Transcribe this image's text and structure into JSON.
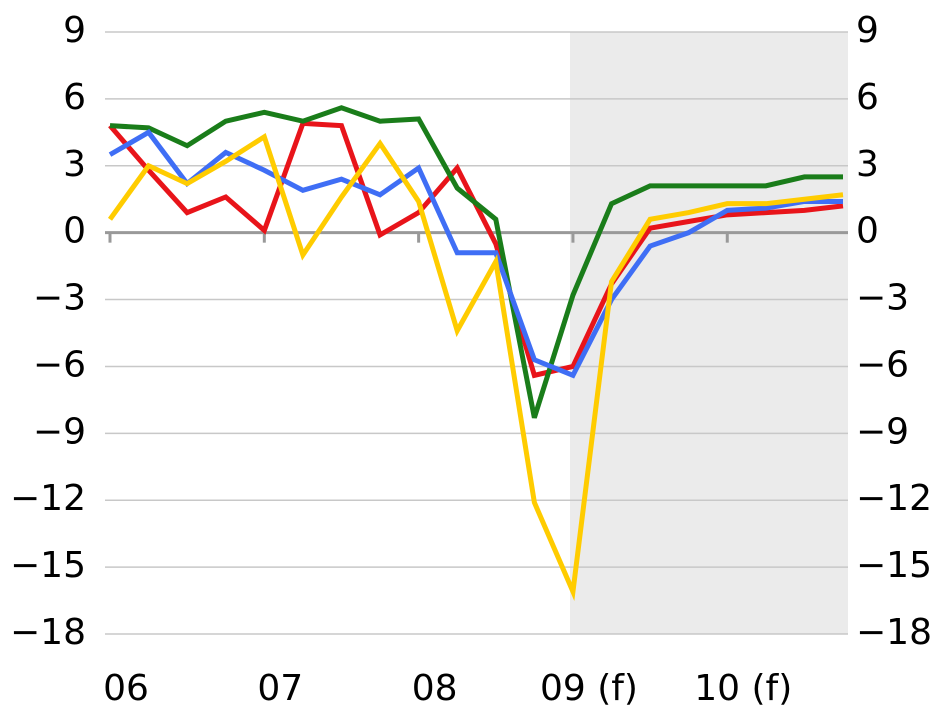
{
  "chart_data": {
    "type": "line",
    "categories": [
      "06",
      null,
      null,
      null,
      "07",
      null,
      null,
      null,
      "08",
      null,
      null,
      null,
      "09 (f)",
      null,
      null,
      null,
      "10 (f)",
      null,
      null,
      null
    ],
    "series": [
      {
        "color": "#e8141a",
        "values": [
          4.8,
          2.8,
          0.9,
          1.6,
          0.1,
          4.9,
          4.8,
          -0.1,
          0.9,
          2.9,
          -0.5,
          -6.4,
          -6.0,
          -2.3,
          0.2,
          0.5,
          0.8,
          0.9,
          1.0,
          1.2
        ]
      },
      {
        "color": "#1a7d1a",
        "values": [
          4.8,
          4.7,
          3.9,
          5.0,
          5.4,
          5.0,
          5.6,
          5.0,
          5.1,
          2.0,
          0.6,
          -8.3,
          -2.8,
          1.3,
          2.1,
          2.1,
          2.1,
          2.1,
          2.5,
          2.5
        ]
      },
      {
        "color": "#3f6ef5",
        "values": [
          3.5,
          4.5,
          2.2,
          3.6,
          2.8,
          1.9,
          2.4,
          1.7,
          2.9,
          -0.9,
          -0.9,
          -5.7,
          -6.4,
          -3.0,
          -0.6,
          0.0,
          1.0,
          1.1,
          1.4,
          1.4
        ]
      },
      {
        "color": "#ffcc00",
        "values": [
          0.6,
          3.0,
          2.2,
          3.2,
          4.3,
          -1.0,
          1.6,
          4.0,
          1.4,
          -4.4,
          -1.3,
          -12.1,
          -16.1,
          -2.2,
          0.6,
          0.9,
          1.3,
          1.3,
          1.5,
          1.7
        ]
      }
    ],
    "ylim": [
      -18,
      9
    ],
    "yticks": [
      {
        "value": -18,
        "label": "−18"
      },
      {
        "value": -15,
        "label": "−15"
      },
      {
        "value": -12,
        "label": "−12"
      },
      {
        "value": -9,
        "label": "−9"
      },
      {
        "value": -6,
        "label": "−6"
      },
      {
        "value": -3,
        "label": "−3"
      },
      0,
      3,
      6,
      9
    ],
    "grid": true
  }
}
